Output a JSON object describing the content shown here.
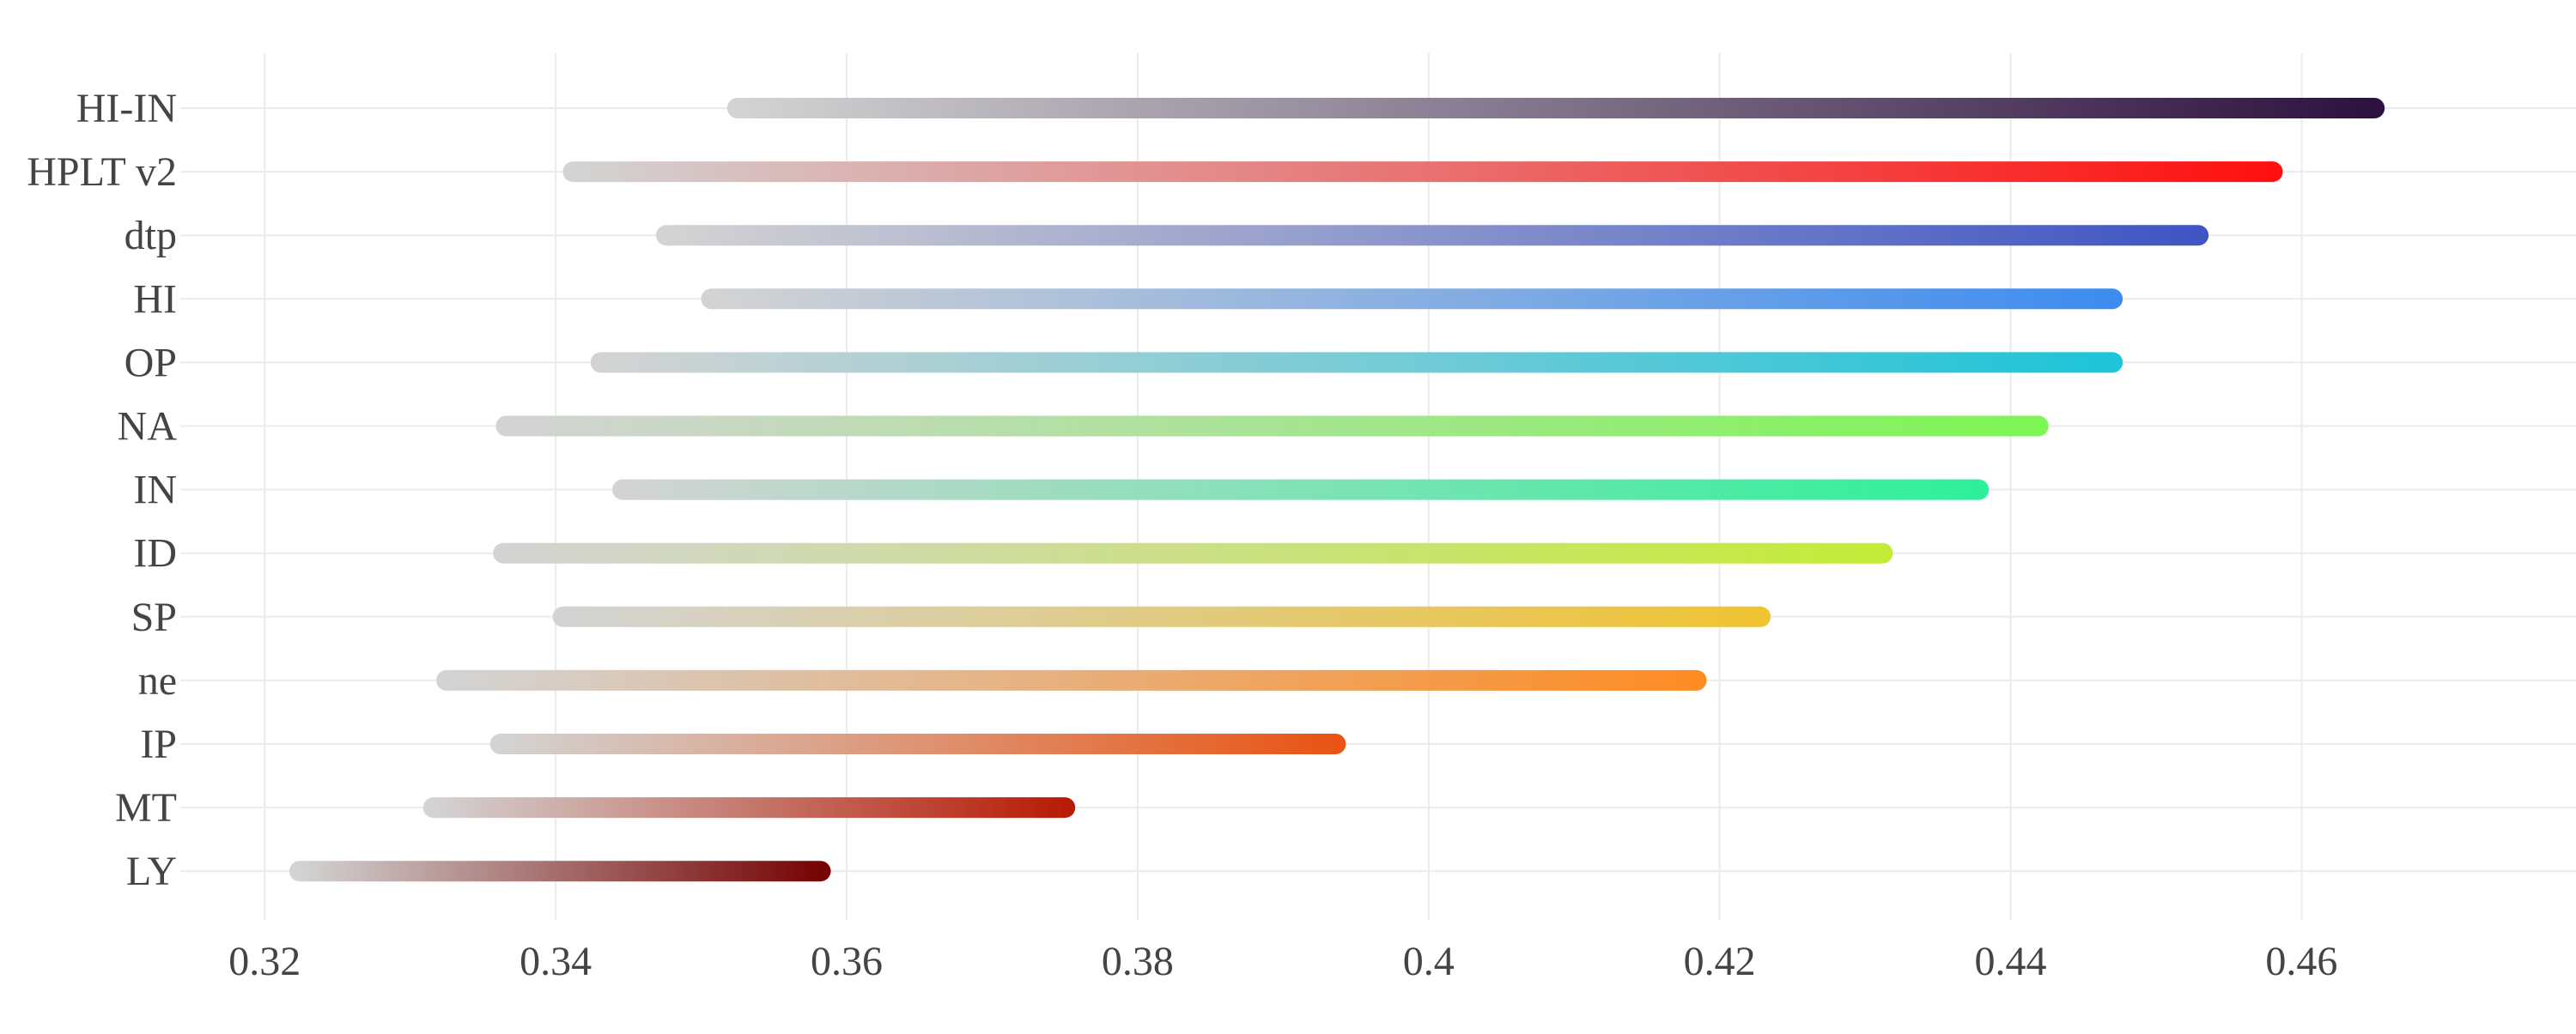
{
  "chart_data": {
    "type": "range-bar",
    "title": "",
    "xlabel": "",
    "ylabel": "",
    "xlim": [
      0.3142,
      0.4765
    ],
    "xticks": [
      {
        "value": 0.32,
        "label": "0.32"
      },
      {
        "value": 0.34,
        "label": "0.34"
      },
      {
        "value": 0.36,
        "label": "0.36"
      },
      {
        "value": 0.38,
        "label": "0.38"
      },
      {
        "value": 0.4,
        "label": "0.4"
      },
      {
        "value": 0.42,
        "label": "0.42"
      },
      {
        "value": 0.44,
        "label": "0.44"
      },
      {
        "value": 0.46,
        "label": "0.46"
      }
    ],
    "grid": true,
    "legend": "none",
    "start_color": "#d3d3d3",
    "categories": [
      "HI-IN",
      "HPLT v2",
      "dtp",
      "HI",
      "OP",
      "NA",
      "IN",
      "ID",
      "SP",
      "ne",
      "IP",
      "MT",
      "LY"
    ],
    "series": [
      {
        "label": "HI-IN",
        "start": 0.3525,
        "end": 0.465,
        "color": "#2d1240"
      },
      {
        "label": "HPLT v2",
        "start": 0.3412,
        "end": 0.458,
        "color": "#ff1010"
      },
      {
        "label": "dtp",
        "start": 0.3476,
        "end": 0.4529,
        "color": "#3f55c4"
      },
      {
        "label": "HI",
        "start": 0.3507,
        "end": 0.447,
        "color": "#3d8cf0"
      },
      {
        "label": "OP",
        "start": 0.3431,
        "end": 0.447,
        "color": "#1ec4d8"
      },
      {
        "label": "NA",
        "start": 0.3366,
        "end": 0.4419,
        "color": "#7df554"
      },
      {
        "label": "IN",
        "start": 0.3446,
        "end": 0.4378,
        "color": "#2ef09a"
      },
      {
        "label": "ID",
        "start": 0.3364,
        "end": 0.4312,
        "color": "#c4eb38"
      },
      {
        "label": "SP",
        "start": 0.3405,
        "end": 0.4228,
        "color": "#efc332"
      },
      {
        "label": "ne",
        "start": 0.3325,
        "end": 0.4184,
        "color": "#fd8c24"
      },
      {
        "label": "IP",
        "start": 0.3362,
        "end": 0.3936,
        "color": "#e95414"
      },
      {
        "label": "MT",
        "start": 0.3316,
        "end": 0.375,
        "color": "#b81c06"
      },
      {
        "label": "LY",
        "start": 0.3224,
        "end": 0.3582,
        "color": "#760404"
      }
    ]
  }
}
